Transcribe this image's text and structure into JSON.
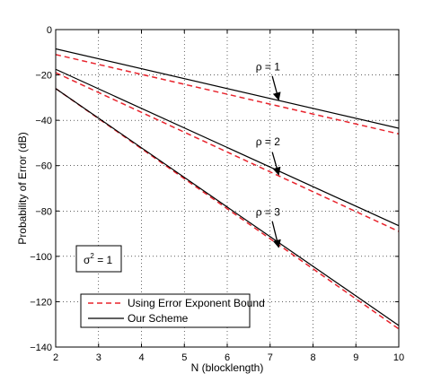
{
  "chart_data": {
    "type": "line",
    "xlabel": "N (blocklength)",
    "ylabel": "Probability of Error (dB)",
    "xlim": [
      2,
      10
    ],
    "ylim": [
      -140,
      0
    ],
    "xticks": [
      2,
      3,
      4,
      5,
      6,
      7,
      8,
      9,
      10
    ],
    "yticks": [
      0,
      -20,
      -40,
      -60,
      -80,
      -100,
      -120,
      -140
    ],
    "grid": true,
    "legend_placement": "bottom-left",
    "legend": [
      {
        "label": "Using Error Exponent Bound",
        "color": "#e8232c",
        "dash": "dashed"
      },
      {
        "label": "Our Scheme",
        "color": "#000000",
        "dash": "solid"
      }
    ],
    "series": [
      {
        "group": "Using Error Exponent Bound",
        "rho": 1,
        "x": [
          2,
          10
        ],
        "y": [
          -11,
          -46
        ]
      },
      {
        "group": "Our Scheme",
        "rho": 1,
        "x": [
          2,
          10
        ],
        "y": [
          -8.5,
          -43.5
        ]
      },
      {
        "group": "Using Error Exponent Bound",
        "rho": 2,
        "x": [
          2,
          10
        ],
        "y": [
          -19,
          -89
        ]
      },
      {
        "group": "Our Scheme",
        "rho": 2,
        "x": [
          2,
          10
        ],
        "y": [
          -17.5,
          -86.5
        ]
      },
      {
        "group": "Using Error Exponent Bound",
        "rho": 3,
        "x": [
          2,
          10
        ],
        "y": [
          -26,
          -132
        ]
      },
      {
        "group": "Our Scheme",
        "rho": 3,
        "x": [
          2,
          10
        ],
        "y": [
          -26,
          -130.5
        ]
      }
    ],
    "annotations": [
      {
        "label": "ρ = 1",
        "text_x": 6.95,
        "text_y": -18,
        "arrow_tail": [
          7.05,
          -20.5
        ],
        "arrow_head": [
          7.2,
          -31
        ]
      },
      {
        "label": "ρ = 2",
        "text_x": 6.95,
        "text_y": -51,
        "arrow_tail": [
          7.05,
          -54
        ],
        "arrow_head": [
          7.2,
          -64
        ]
      },
      {
        "label": "ρ = 3",
        "text_x": 6.95,
        "text_y": -82,
        "arrow_tail": [
          7.05,
          -84.5
        ],
        "arrow_head": [
          7.2,
          -96
        ]
      }
    ],
    "inset_box": {
      "base": "σ",
      "superscript": "2",
      "suffix": " = 1"
    }
  }
}
